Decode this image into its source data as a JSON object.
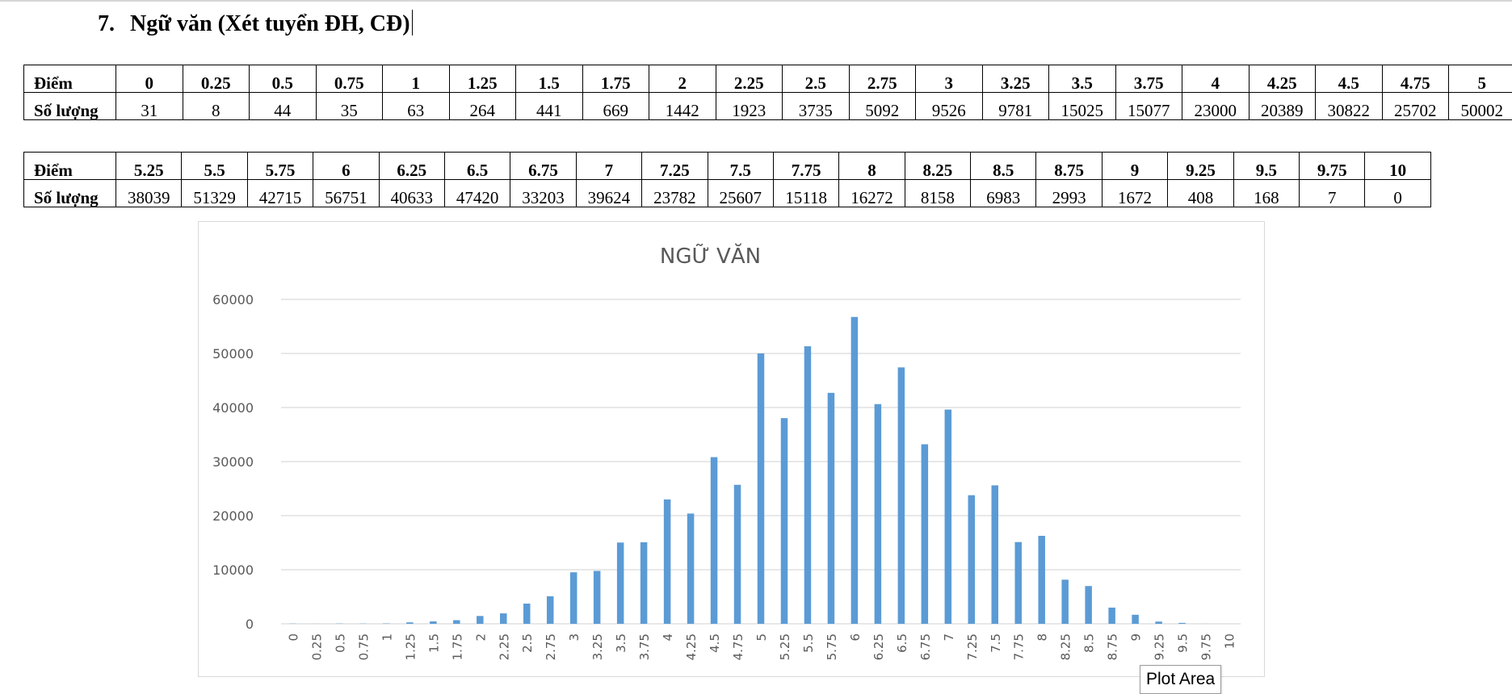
{
  "heading": {
    "number": "7.",
    "text": "Ngữ văn (Xét tuyển ĐH, CĐ)"
  },
  "table1": {
    "label_score": "Điểm",
    "label_count": "Số lượng",
    "scores": [
      "0",
      "0.25",
      "0.5",
      "0.75",
      "1",
      "1.25",
      "1.5",
      "1.75",
      "2",
      "2.25",
      "2.5",
      "2.75",
      "3",
      "3.25",
      "3.5",
      "3.75",
      "4",
      "4.25",
      "4.5",
      "4.75",
      "5"
    ],
    "counts": [
      "31",
      "8",
      "44",
      "35",
      "63",
      "264",
      "441",
      "669",
      "1442",
      "1923",
      "3735",
      "5092",
      "9526",
      "9781",
      "15025",
      "15077",
      "23000",
      "20389",
      "30822",
      "25702",
      "50002"
    ]
  },
  "table2": {
    "label_score": "Điểm",
    "label_count": "Số lượng",
    "scores": [
      "5.25",
      "5.5",
      "5.75",
      "6",
      "6.25",
      "6.5",
      "6.75",
      "7",
      "7.25",
      "7.5",
      "7.75",
      "8",
      "8.25",
      "8.5",
      "8.75",
      "9",
      "9.25",
      "9.5",
      "9.75",
      "10"
    ],
    "counts": [
      "38039",
      "51329",
      "42715",
      "56751",
      "40633",
      "47420",
      "33203",
      "39624",
      "23782",
      "25607",
      "15118",
      "16272",
      "8158",
      "6983",
      "2993",
      "1672",
      "408",
      "168",
      "7",
      "0"
    ]
  },
  "chart_data": {
    "type": "bar",
    "title": "NGỮ VĂN",
    "xlabel": "",
    "ylabel": "",
    "ylim": [
      0,
      60000
    ],
    "yticks": [
      0,
      10000,
      20000,
      30000,
      40000,
      50000,
      60000
    ],
    "grid": true,
    "legend": "none",
    "bar_color": "#5b9bd5",
    "categories": [
      "0",
      "0.25",
      "0.5",
      "0.75",
      "1",
      "1.25",
      "1.5",
      "1.75",
      "2",
      "2.25",
      "2.5",
      "2.75",
      "3",
      "3.25",
      "3.5",
      "3.75",
      "4",
      "4.25",
      "4.5",
      "4.75",
      "5",
      "5.25",
      "5.5",
      "5.75",
      "6",
      "6.25",
      "6.5",
      "6.75",
      "7",
      "7.25",
      "7.5",
      "7.75",
      "8",
      "8.25",
      "8.5",
      "8.75",
      "9",
      "9.25",
      "9.5",
      "9.75",
      "10"
    ],
    "values": [
      31,
      8,
      44,
      35,
      63,
      264,
      441,
      669,
      1442,
      1923,
      3735,
      5092,
      9526,
      9781,
      15025,
      15077,
      23000,
      20389,
      30822,
      25702,
      50002,
      38039,
      51329,
      42715,
      56751,
      40633,
      47420,
      33203,
      39624,
      23782,
      25607,
      15118,
      16272,
      8158,
      6983,
      2993,
      1672,
      408,
      168,
      7,
      0
    ]
  },
  "tooltip": {
    "text": "Plot Area"
  }
}
